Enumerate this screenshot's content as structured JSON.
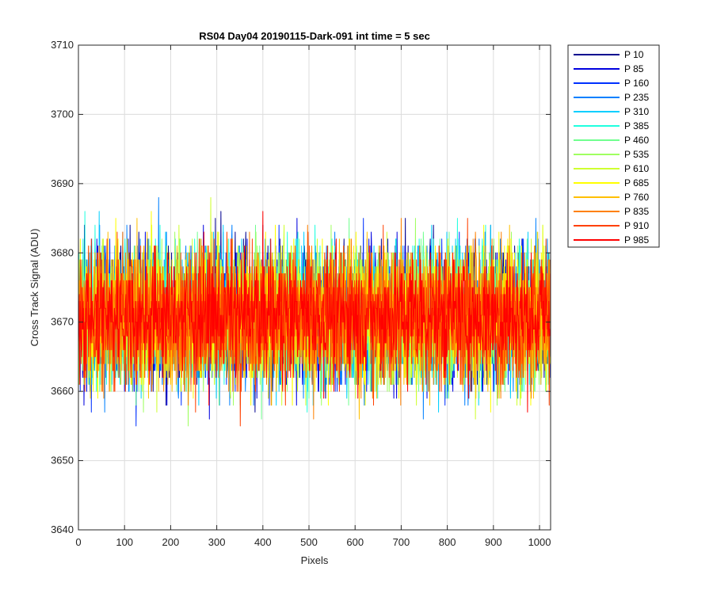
{
  "chart_data": {
    "type": "line",
    "title": "RS04 Day04 20190115-Dark-091 int time = 5 sec",
    "xlabel": "Pixels",
    "ylabel": "Cross Track Signal (ADU)",
    "xlim": [
      0,
      1024
    ],
    "ylim": [
      3640,
      3710
    ],
    "xticks": [
      0,
      100,
      200,
      300,
      400,
      500,
      600,
      700,
      800,
      900,
      1000
    ],
    "yticks": [
      3640,
      3650,
      3660,
      3670,
      3680,
      3690,
      3700,
      3710
    ],
    "grid": true,
    "legend_position": "outside-top-right",
    "samples": 1024,
    "series": [
      {
        "name": "P 10",
        "color": "#00008f",
        "mean": 3672,
        "spread": 9
      },
      {
        "name": "P 85",
        "color": "#0000df",
        "mean": 3671,
        "spread": 9
      },
      {
        "name": "P 160",
        "color": "#0030ff",
        "mean": 3671,
        "spread": 9
      },
      {
        "name": "P 235",
        "color": "#0080ff",
        "mean": 3671,
        "spread": 9
      },
      {
        "name": "P 310",
        "color": "#00cfff",
        "mean": 3671,
        "spread": 9
      },
      {
        "name": "P 385",
        "color": "#20ffdf",
        "mean": 3672,
        "spread": 9
      },
      {
        "name": "P 460",
        "color": "#70ff8f",
        "mean": 3671,
        "spread": 9
      },
      {
        "name": "P 535",
        "color": "#9fff60",
        "mean": 3671,
        "spread": 9
      },
      {
        "name": "P 610",
        "color": "#cfff30",
        "mean": 3671,
        "spread": 9
      },
      {
        "name": "P 685",
        "color": "#ffff00",
        "mean": 3671,
        "spread": 9
      },
      {
        "name": "P 760",
        "color": "#ffbf00",
        "mean": 3671,
        "spread": 9
      },
      {
        "name": "P 835",
        "color": "#ff8000",
        "mean": 3671,
        "spread": 9
      },
      {
        "name": "P 910",
        "color": "#ff4000",
        "mean": 3671,
        "spread": 9
      },
      {
        "name": "P 985",
        "color": "#ff0000",
        "mean": 3671,
        "spread": 8
      }
    ]
  }
}
